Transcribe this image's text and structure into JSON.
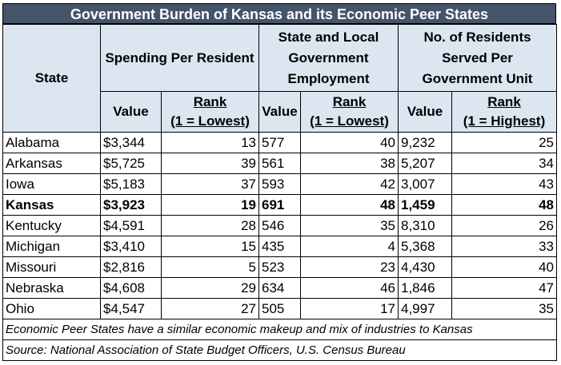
{
  "title": "Government Burden of Kansas and its Economic Peer States",
  "headers": {
    "state": "State",
    "group1": "Spending Per Resident",
    "group2": "State and Local Government Employment",
    "group3": "No. of Residents Served Per Government Unit",
    "value": "Value",
    "rank_word": "Rank",
    "rank_lowest": "(1 = Lowest)",
    "rank_highest": "(1 = Highest)"
  },
  "rows": [
    {
      "state": "Alabama",
      "spend": "$3,344",
      "spend_rank": "13",
      "emp": "577",
      "emp_rank": "40",
      "res": "9,232",
      "res_rank": "25"
    },
    {
      "state": "Arkansas",
      "spend": "$5,725",
      "spend_rank": "39",
      "emp": "561",
      "emp_rank": "38",
      "res": "5,207",
      "res_rank": "34"
    },
    {
      "state": "Iowa",
      "spend": "$5,183",
      "spend_rank": "37",
      "emp": "593",
      "emp_rank": "42",
      "res": "3,007",
      "res_rank": "43"
    },
    {
      "state": "Kansas",
      "spend": "$3,923",
      "spend_rank": "19",
      "emp": "691",
      "emp_rank": "48",
      "res": "1,459",
      "res_rank": "48"
    },
    {
      "state": "Kentucky",
      "spend": "$4,591",
      "spend_rank": "28",
      "emp": "546",
      "emp_rank": "35",
      "res": "8,310",
      "res_rank": "26"
    },
    {
      "state": "Michigan",
      "spend": "$3,410",
      "spend_rank": "15",
      "emp": "435",
      "emp_rank": "4",
      "res": "5,368",
      "res_rank": "33"
    },
    {
      "state": "Missouri",
      "spend": "$2,816",
      "spend_rank": "5",
      "emp": "523",
      "emp_rank": "23",
      "res": "4,430",
      "res_rank": "40"
    },
    {
      "state": "Nebraska",
      "spend": "$4,608",
      "spend_rank": "29",
      "emp": "634",
      "emp_rank": "46",
      "res": "1,846",
      "res_rank": "47"
    },
    {
      "state": "Ohio",
      "spend": "$4,547",
      "spend_rank": "27",
      "emp": "505",
      "emp_rank": "17",
      "res": "4,997",
      "res_rank": "35"
    }
  ],
  "highlight_state": "Kansas",
  "footnotes": [
    "Economic Peer States have a similar economic makeup and mix of industries to Kansas",
    "Source: National Association of State Budget Officers, U.S. Census Bureau"
  ],
  "colors": {
    "title_bg": "#44546a",
    "header_bg": "#dce6f1"
  }
}
